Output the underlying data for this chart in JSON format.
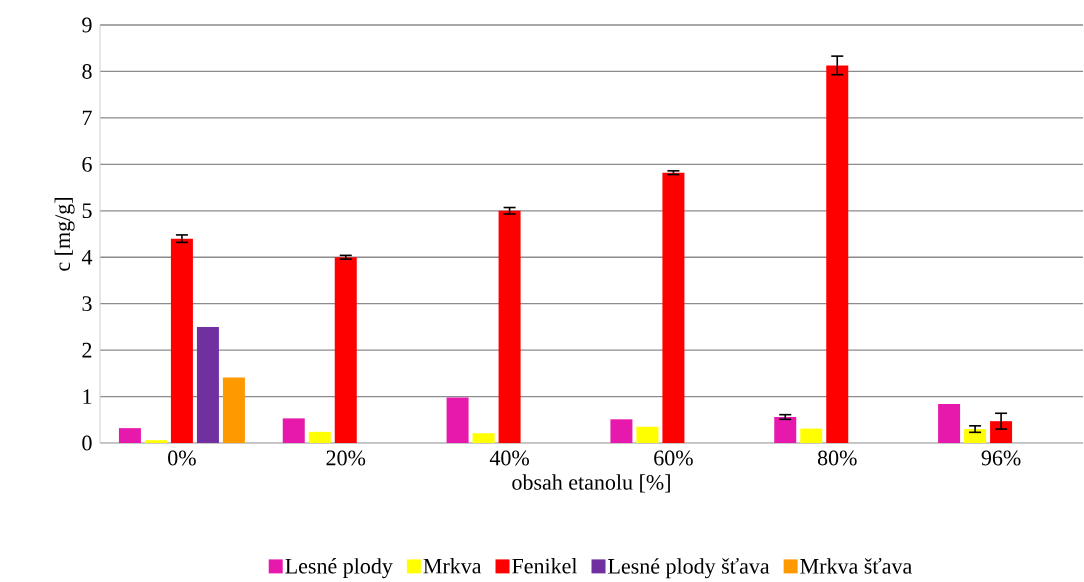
{
  "chart_data": {
    "type": "bar",
    "xlabel": "obsah etanolu [%]",
    "ylabel": "c [mg/g]",
    "categories": [
      "0%",
      "20%",
      "40%",
      "60%",
      "80%",
      "96%"
    ],
    "series": [
      {
        "name": "Lesné plody",
        "color": "#e619ac",
        "values": [
          0.32,
          0.53,
          0.98,
          0.51,
          0.56,
          0.84
        ],
        "errors": [
          null,
          null,
          null,
          null,
          0.05,
          null
        ]
      },
      {
        "name": "Mrkva",
        "color": "#ffff00",
        "values": [
          0.06,
          0.24,
          0.21,
          0.35,
          0.31,
          0.3
        ],
        "errors": [
          null,
          null,
          null,
          null,
          null,
          0.07
        ]
      },
      {
        "name": "Fenikel",
        "color": "#ff0000",
        "values": [
          4.4,
          4.0,
          5.0,
          5.82,
          8.13,
          0.47
        ],
        "errors": [
          0.08,
          0.04,
          0.07,
          0.04,
          0.2,
          0.17
        ]
      },
      {
        "name": "Lesné plody šťava",
        "color": "#7030a0",
        "values": [
          2.5,
          null,
          null,
          null,
          null,
          null
        ]
      },
      {
        "name": "Mrkva šťava",
        "color": "#ff9900",
        "values": [
          1.41,
          null,
          null,
          null,
          null,
          null
        ]
      }
    ],
    "ylim": [
      0,
      9
    ],
    "yticks": [
      0,
      1,
      2,
      3,
      4,
      5,
      6,
      7,
      8,
      9
    ],
    "grid": "y",
    "legend": "bottom"
  }
}
